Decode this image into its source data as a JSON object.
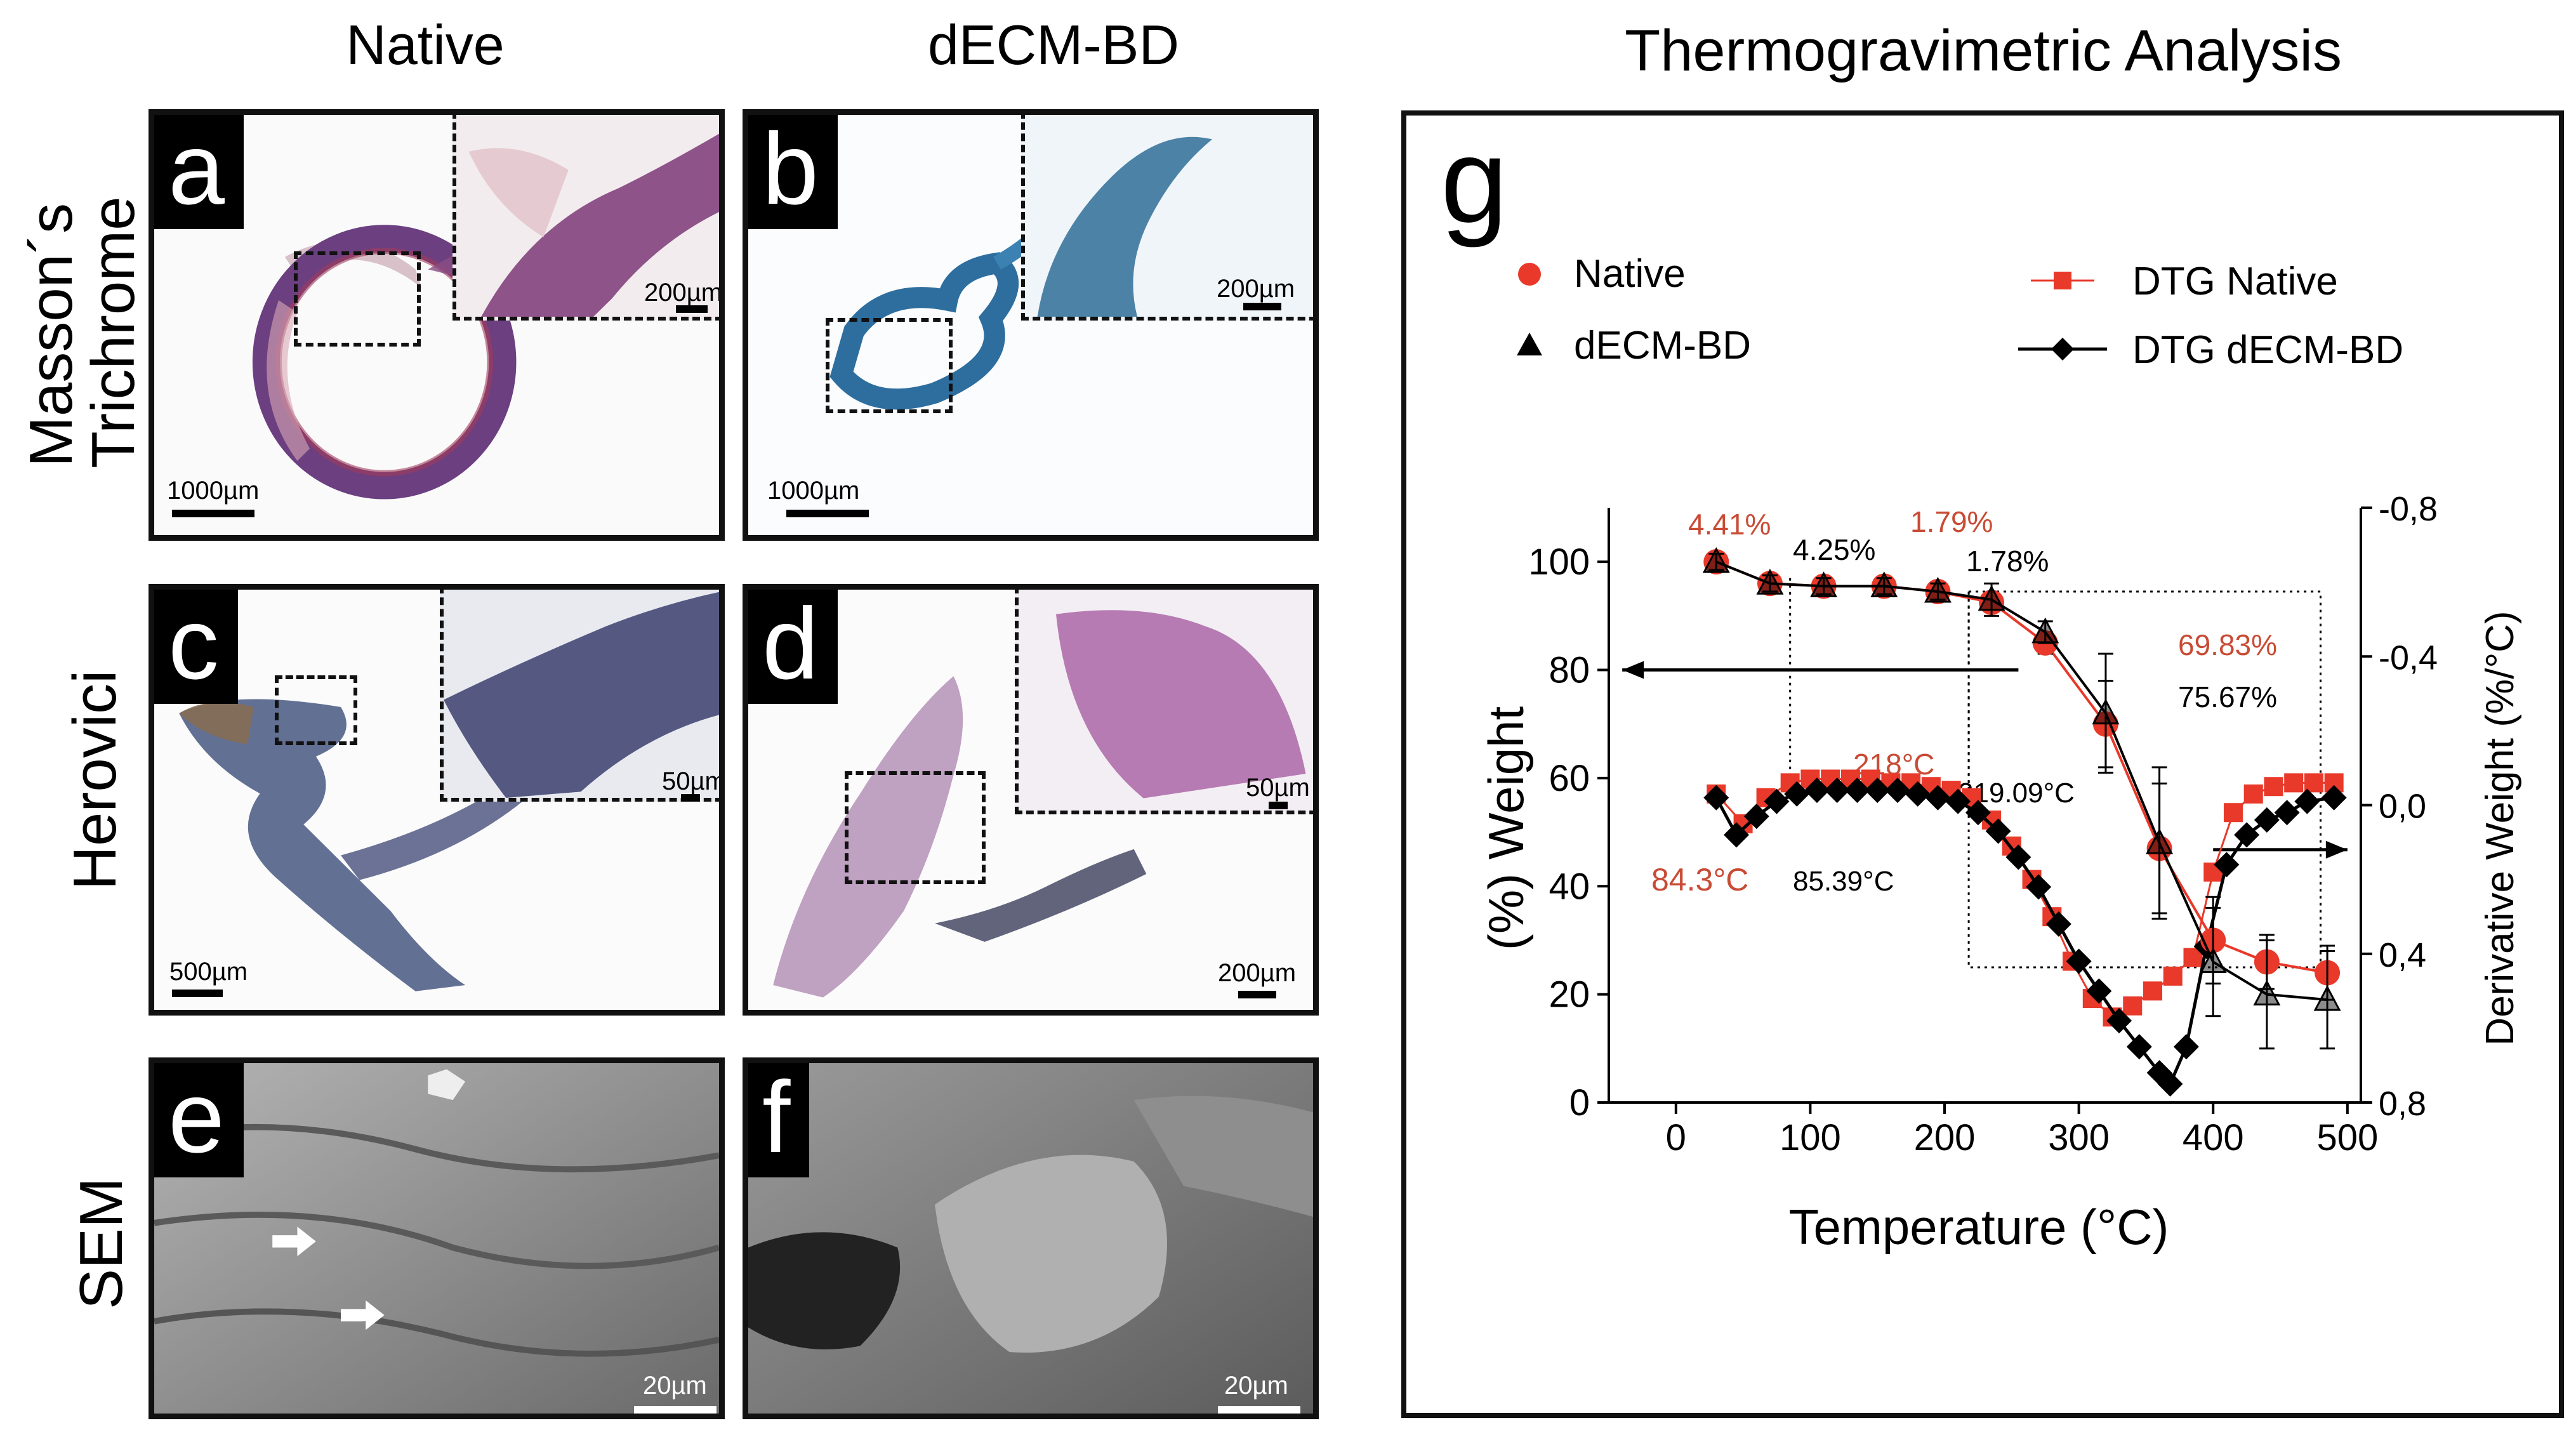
{
  "columns": {
    "native": "Native",
    "decellularized": "dECM-BD",
    "analysis": "Thermogravimetric Analysis"
  },
  "rows": {
    "masson_line1": "Masson´s",
    "masson_line2": "Trichrome",
    "herovici": "Herovici",
    "sem": "SEM"
  },
  "panels": [
    {
      "letter": "a",
      "scale_main": "1000µm",
      "scale_inset": "200µm"
    },
    {
      "letter": "b",
      "scale_main": "1000µm",
      "scale_inset": "200µm"
    },
    {
      "letter": "c",
      "scale_main": "500µm",
      "scale_inset": "50µm"
    },
    {
      "letter": "d",
      "scale_main": "200µm",
      "scale_inset": "50µm"
    },
    {
      "letter": "e",
      "scale_main": "20µm"
    },
    {
      "letter": "f",
      "scale_main": "20µm"
    }
  ],
  "chart_data": {
    "type": "line",
    "panel_letter": "g",
    "title": "Thermogravimetric Analysis",
    "xlabel": "Temperature (°C)",
    "ylabel": "(%) Weight",
    "y2label": "Derivative Weight (%/°C)",
    "xlim": [
      -50,
      510
    ],
    "ylim": [
      0,
      110
    ],
    "y2lim": [
      0.8,
      -0.8
    ],
    "xticks": [
      0,
      100,
      200,
      300,
      400,
      500
    ],
    "yticks": [
      0,
      20,
      40,
      60,
      80,
      100
    ],
    "y2ticks": [
      0.8,
      0.4,
      0.0,
      -0.4,
      -0.8
    ],
    "y2ticklabels": [
      "0,8",
      "0,4",
      "0,0",
      "-0,4",
      "-0,8"
    ],
    "series": [
      {
        "name": "Native",
        "axis": "left",
        "marker": "circle",
        "color": "#e8392a",
        "x": [
          30,
          70,
          110,
          155,
          195,
          235,
          275,
          320,
          360,
          400,
          440,
          485
        ],
        "y": [
          100,
          96,
          95.5,
          95.5,
          94.5,
          92.5,
          85,
          70,
          47,
          30,
          26,
          24
        ],
        "err": [
          1.5,
          1.5,
          1.5,
          1.5,
          1.5,
          1.5,
          2,
          8,
          12,
          8,
          5,
          5
        ]
      },
      {
        "name": "dECM-BD",
        "axis": "left",
        "marker": "triangle",
        "color": "#000000",
        "x": [
          30,
          70,
          110,
          155,
          195,
          235,
          275,
          320,
          360,
          400,
          440,
          485
        ],
        "y": [
          100,
          96,
          95.5,
          95.5,
          94.5,
          93,
          87,
          72,
          48,
          26,
          20,
          19
        ],
        "err": [
          1.5,
          1.5,
          1.5,
          1.5,
          1.5,
          3,
          2,
          11,
          14,
          10,
          10,
          9
        ]
      },
      {
        "name": "DTG Native",
        "axis": "right",
        "marker": "square",
        "color": "#e8392a",
        "x": [
          30,
          50,
          67,
          85,
          100,
          115,
          130,
          145,
          160,
          175,
          190,
          205,
          220,
          235,
          250,
          265,
          280,
          295,
          310,
          325,
          340,
          355,
          370,
          385,
          400,
          415,
          430,
          445,
          460,
          475,
          490
        ],
        "y": [
          -0.03,
          0.05,
          -0.02,
          -0.06,
          -0.07,
          -0.07,
          -0.07,
          -0.07,
          -0.06,
          -0.06,
          -0.05,
          -0.04,
          -0.02,
          0.04,
          0.11,
          0.2,
          0.3,
          0.42,
          0.52,
          0.57,
          0.54,
          0.5,
          0.46,
          0.41,
          0.18,
          0.02,
          -0.03,
          -0.05,
          -0.06,
          -0.06,
          -0.06
        ]
      },
      {
        "name": "DTG dECM-BD",
        "axis": "right",
        "marker": "diamond",
        "color": "#000000",
        "x": [
          30,
          45,
          60,
          75,
          90,
          105,
          120,
          135,
          150,
          165,
          180,
          195,
          210,
          225,
          240,
          255,
          270,
          285,
          300,
          315,
          330,
          345,
          360,
          368,
          380,
          395,
          410,
          425,
          440,
          455,
          470,
          490
        ],
        "y": [
          -0.02,
          0.08,
          0.03,
          -0.01,
          -0.03,
          -0.04,
          -0.04,
          -0.04,
          -0.04,
          -0.04,
          -0.03,
          -0.02,
          -0.01,
          0.02,
          0.07,
          0.14,
          0.22,
          0.32,
          0.42,
          0.5,
          0.58,
          0.65,
          0.72,
          0.75,
          0.65,
          0.38,
          0.16,
          0.08,
          0.04,
          0.02,
          -0.01,
          -0.02
        ]
      }
    ],
    "annotations": {
      "pct_native_1": "4.41%",
      "pct_decm_1": "4.25%",
      "pct_native_2": "1.79%",
      "pct_decm_2": "1.78%",
      "pct_native_3": "69.83%",
      "pct_decm_3": "75.67%",
      "temp_native_1": "84.3°C",
      "temp_decm_1": "85.39°C",
      "temp_native_2": "218°C",
      "temp_decm_2": "219.09°C"
    },
    "legend_position": "top"
  }
}
